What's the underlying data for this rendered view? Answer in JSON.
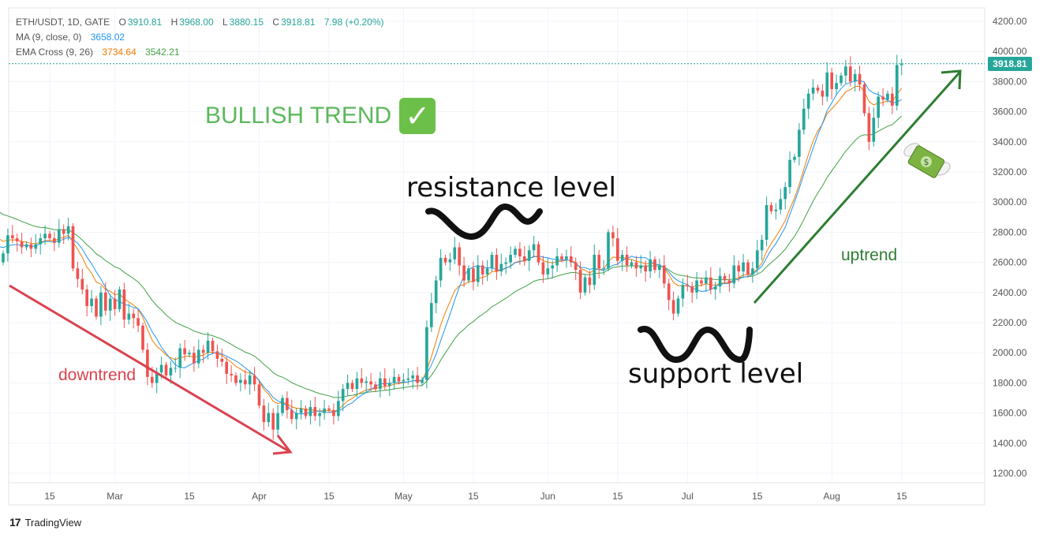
{
  "header": {
    "symbol": "ETH/USDT, 1D, GATE",
    "open_label": "O",
    "open": "3910.81",
    "high_label": "H",
    "high": "3968.00",
    "low_label": "L",
    "low": "3880.15",
    "close_label": "C",
    "close": "3918.81",
    "change": "7.98 (+0.20%)",
    "ma_label": "MA (9, close, 0)",
    "ma_value": "3658.02",
    "ema_label": "EMA Cross (9, 26)",
    "ema_fast": "3734.64",
    "ema_slow": "3542.21"
  },
  "annotations": {
    "bullish": "BULLISH TREND",
    "check_icon": "✓",
    "resistance": "resistance level",
    "support": "support level",
    "downtrend": "downtrend",
    "uptrend": "uptrend"
  },
  "last_price_tag": "3918.81",
  "footer": {
    "logo": "17",
    "brand": "TradingView"
  },
  "colors": {
    "up": "#26a69a",
    "down": "#ef5350",
    "ma": "#2196f3",
    "ema_fast": "#f57c00",
    "ema_slow": "#43a047",
    "downtrend_arrow": "#d9434f",
    "uptrend_arrow": "#2e7d32"
  },
  "chart_data": {
    "type": "candlestick",
    "symbol": "ETH/USDT",
    "timeframe": "1D",
    "ylim": [
      1100,
      4300
    ],
    "y_ticks": [
      "4200.00",
      "4000.00",
      "3800.00",
      "3600.00",
      "3400.00",
      "3200.00",
      "3000.00",
      "2800.00",
      "2600.00",
      "2400.00",
      "2200.00",
      "2000.00",
      "1800.00",
      "1600.00",
      "1400.00",
      "1200.00"
    ],
    "x_ticks": [
      "15",
      "Mar",
      "15",
      "Apr",
      "15",
      "May",
      "15",
      "Jun",
      "15",
      "Jul",
      "15",
      "Aug",
      "15"
    ],
    "x_tick_days": [
      15,
      29,
      45,
      60,
      75,
      91,
      106,
      122,
      137,
      152,
      167,
      183,
      198
    ],
    "start_date": "2024-02-01",
    "close": [
      2770,
      2690,
      2770,
      2700,
      2600,
      2660,
      2780,
      2760,
      2740,
      2700,
      2720,
      2690,
      2720,
      2760,
      2790,
      2760,
      2730,
      2820,
      2790,
      2840,
      2560,
      2490,
      2420,
      2310,
      2360,
      2240,
      2400,
      2280,
      2360,
      2290,
      2420,
      2220,
      2260,
      2230,
      2180,
      2020,
      1840,
      1800,
      1870,
      1920,
      1850,
      1900,
      1900,
      2030,
      1990,
      2000,
      1930,
      2020,
      2000,
      2080,
      2010,
      1960,
      1940,
      1860,
      1850,
      1800,
      1820,
      1790,
      1850,
      1790,
      1650,
      1540,
      1600,
      1490,
      1600,
      1700,
      1620,
      1560,
      1600,
      1630,
      1580,
      1640,
      1580,
      1600,
      1630,
      1620,
      1580,
      1680,
      1760,
      1800,
      1760,
      1830,
      1800,
      1810,
      1790,
      1760,
      1830,
      1780,
      1800,
      1840,
      1810,
      1820,
      1830,
      1850,
      1800,
      1820,
      2170,
      2330,
      2480,
      2630,
      2600,
      2620,
      2700,
      2580,
      2480,
      2560,
      2470,
      2580,
      2520,
      2560,
      2650,
      2540,
      2590,
      2600,
      2650,
      2690,
      2640,
      2610,
      2680,
      2720,
      2600,
      2520,
      2560,
      2580,
      2640,
      2620,
      2640,
      2600,
      2550,
      2400,
      2500,
      2450,
      2650,
      2560,
      2560,
      2800,
      2760,
      2610,
      2650,
      2580,
      2600,
      2560,
      2580,
      2540,
      2620,
      2550,
      2580,
      2460,
      2350,
      2260,
      2360,
      2450,
      2440,
      2400,
      2480,
      2460,
      2500,
      2420,
      2440,
      2510,
      2480,
      2460,
      2580,
      2540,
      2600,
      2520,
      2560,
      2680,
      2750,
      2980,
      2940,
      2950,
      3020,
      3100,
      3280,
      3300,
      3480,
      3620,
      3720,
      3760,
      3740,
      3700,
      3860,
      3750,
      3790,
      3840,
      3900,
      3800,
      3850,
      3780,
      3590,
      3400,
      3560,
      3700,
      3680,
      3720,
      3640,
      3910,
      3918.81
    ]
  }
}
